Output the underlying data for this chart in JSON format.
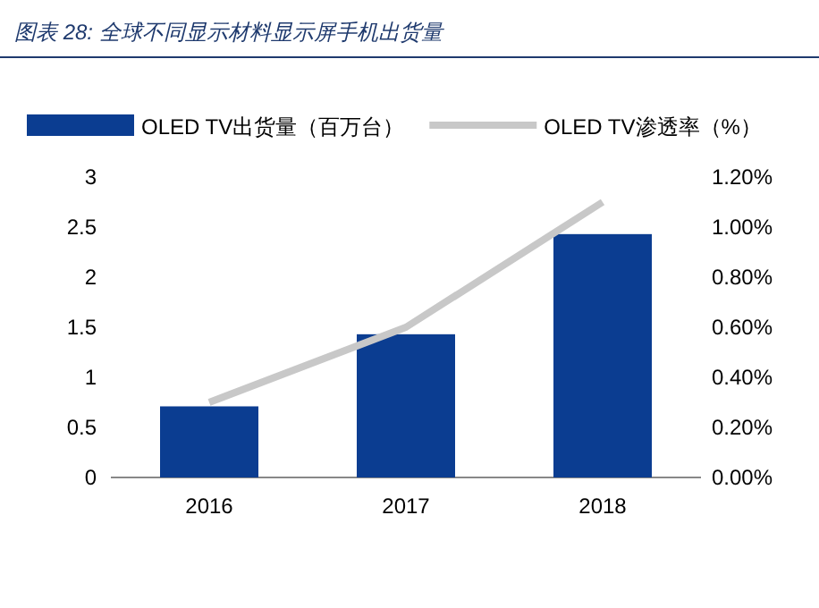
{
  "chart_data": {
    "type": "bar",
    "title": "图表 28:  全球不同显示材料显示屏手机出货量",
    "categories": [
      "2016",
      "2017",
      "2018"
    ],
    "series": [
      {
        "name": "OLED TV出货量（百万台）",
        "color": "#0b3d91",
        "values": [
          0.71,
          1.43,
          2.43
        ]
      },
      {
        "name": "OLED TV渗透率（%）",
        "type": "line",
        "axis": "y2",
        "color": "#c8c8c8",
        "values": [
          0.3,
          0.6,
          1.1
        ]
      }
    ],
    "ylim": [
      0,
      3
    ],
    "yticks": [
      0,
      0.5,
      1,
      1.5,
      2,
      2.5,
      3
    ],
    "y2lim": [
      0,
      1.2
    ],
    "y2ticks": [
      {
        "value": 0,
        "label": "0.00%"
      },
      {
        "value": 0.2,
        "label": "0.20%"
      },
      {
        "value": 0.4,
        "label": "0.40%"
      },
      {
        "value": 0.6,
        "label": "0.60%"
      },
      {
        "value": 0.8,
        "label": "0.80%"
      },
      {
        "value": 1.0,
        "label": "1.00%"
      },
      {
        "value": 1.2,
        "label": "1.20%"
      }
    ],
    "legend": "top",
    "grid": false
  }
}
